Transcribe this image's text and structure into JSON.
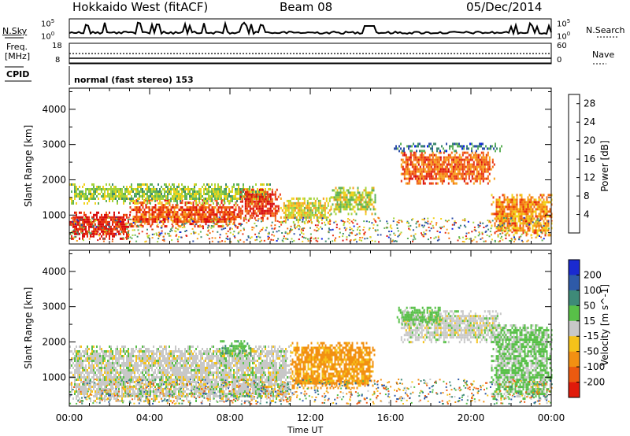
{
  "header": {
    "station": "Hokkaido West (fitACF)",
    "beam": "Beam 08",
    "date": "05/Dec/2014"
  },
  "strips": {
    "nsky_label": "N.Sky",
    "nsky_ticks": [
      "10^5",
      "10^0"
    ],
    "nsky_right_ticks": [
      "10^5",
      "10^0"
    ],
    "nsearch_label": "N.Search",
    "freq_label_line1": "Freq.",
    "freq_label_line2": "[MHz]",
    "freq_ticks": [
      "18",
      "8"
    ],
    "nave_ticks": [
      "60",
      "0"
    ],
    "nave_label": "Nave",
    "cpid_label": "CPID",
    "cpid_value": "normal (fast stereo) 153"
  },
  "chart_data": [
    {
      "type": "heatmap",
      "name": "Power",
      "ylabel": "Slant Range [km]",
      "xlabel": "",
      "x_ticks": [
        "00:00",
        "04:00",
        "08:00",
        "12:00",
        "16:00",
        "20:00",
        "00:00"
      ],
      "y_ticks": [
        1000,
        2000,
        3000,
        4000
      ],
      "xlim_hours": [
        0,
        24
      ],
      "ylim_km": [
        180,
        4600
      ],
      "colorbar": {
        "label": "Power [dB]",
        "ticks": [
          4,
          8,
          12,
          16,
          20,
          24,
          28
        ],
        "colors": [
          "#0a1ee6",
          "#2d4ea8",
          "#3d8a6e",
          "#5fb25a",
          "#a6d43a",
          "#f2d21c",
          "#f7a01a",
          "#f26a12",
          "#e83010",
          "#d80c0c"
        ]
      },
      "bands": [
        {
          "t0": 0.0,
          "t1": 3.0,
          "r0": 300,
          "r1": 1100,
          "value_db": 28
        },
        {
          "t0": 3.0,
          "t1": 8.5,
          "r0": 650,
          "r1": 1450,
          "value_db": 24
        },
        {
          "t0": 0.0,
          "t1": 10.0,
          "r0": 1300,
          "r1": 1900,
          "value_db": 13
        },
        {
          "t0": 8.5,
          "t1": 10.5,
          "r0": 850,
          "r1": 1750,
          "value_db": 26
        },
        {
          "t0": 10.5,
          "t1": 13.0,
          "r0": 800,
          "r1": 1500,
          "value_db": 16
        },
        {
          "t0": 13.0,
          "t1": 15.2,
          "r0": 1000,
          "r1": 1800,
          "value_db": 14
        },
        {
          "t0": 16.5,
          "t1": 21.2,
          "r0": 1900,
          "r1": 2800,
          "value_db": 23
        },
        {
          "t0": 21.0,
          "t1": 24.0,
          "r0": 400,
          "r1": 1600,
          "value_db": 20
        },
        {
          "t0": 16.0,
          "t1": 21.5,
          "r0": 2800,
          "r1": 3050,
          "value_db": 7
        }
      ]
    },
    {
      "type": "heatmap",
      "name": "Velocity",
      "ylabel": "Slant Range [km]",
      "xlabel": "Time UT",
      "x_ticks": [
        "00:00",
        "04:00",
        "08:00",
        "12:00",
        "16:00",
        "20:00",
        "00:00"
      ],
      "y_ticks": [
        1000,
        2000,
        3000,
        4000
      ],
      "xlim_hours": [
        0,
        24
      ],
      "ylim_km": [
        180,
        4600
      ],
      "colorbar": {
        "label": "Velocity [m s^-1]",
        "ticks": [
          200,
          100,
          50,
          15,
          -15,
          -50,
          -100,
          -200
        ],
        "colors": [
          "#1a2ad0",
          "#2e5aa8",
          "#3e8a78",
          "#58c048",
          "#c8c8c8",
          "#f5c21a",
          "#f29012",
          "#ec5a10",
          "#e01a0a"
        ]
      },
      "bands": [
        {
          "t0": 0.0,
          "t1": 11.0,
          "r0": 300,
          "r1": 1900,
          "value_ms": 0
        },
        {
          "t0": 7.5,
          "t1": 9.0,
          "r0": 1600,
          "r1": 2050,
          "value_ms": 40
        },
        {
          "t0": 11.0,
          "t1": 15.2,
          "r0": 700,
          "r1": 2000,
          "value_ms": -60
        },
        {
          "t0": 16.5,
          "t1": 21.5,
          "r0": 2000,
          "r1": 2900,
          "value_ms": 0
        },
        {
          "t0": 16.3,
          "t1": 18.5,
          "r0": 2500,
          "r1": 3000,
          "value_ms": 30
        },
        {
          "t0": 21.0,
          "t1": 24.0,
          "r0": 400,
          "r1": 2500,
          "value_ms": 20
        }
      ]
    }
  ]
}
